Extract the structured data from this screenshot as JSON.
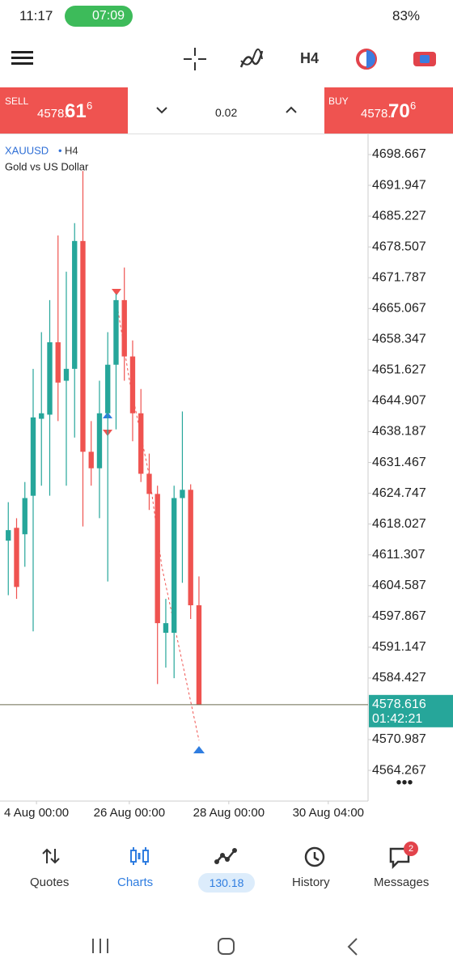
{
  "status_bar": {
    "time": "11:17",
    "call_timer": "07:09",
    "battery": "83%"
  },
  "toolbar": {
    "timeframe": "H4"
  },
  "trade_panel": {
    "sell_label": "SELL",
    "sell_price_main": "4578.",
    "sell_price_big": "61",
    "sell_price_sup": "6",
    "volume": "0.02",
    "buy_label": "BUY",
    "buy_price_main": "4578.",
    "buy_price_big": "70",
    "buy_price_sup": "6"
  },
  "chart_data": {
    "type": "candlestick",
    "symbol": "XAUUSD",
    "timeframe": "H4",
    "description": "Gold vs US Dollar",
    "up_color": "#26a69a",
    "down_color": "#ef5350",
    "open": [
      4614.4,
      4617.2,
      4615.8,
      4624.2,
      4641.0,
      4641.9,
      4657.7,
      4649.3,
      4651.9,
      4679.8,
      4633.8,
      4630.2,
      4642.2,
      4652.8,
      4666.9,
      4654.6,
      4642.2,
      4629.0,
      4624.6,
      4594.3,
      4594.3,
      4623.7,
      4625.5,
      4600.3
    ],
    "high": [
      4622.8,
      4619.3,
      4627.2,
      4651.9,
      4659.9,
      4666.9,
      4681.0,
      4673.1,
      4683.7,
      4695.1,
      4640.5,
      4649.3,
      4659.9,
      4668.3,
      4674.0,
      4658.1,
      4647.5,
      4633.4,
      4626.4,
      4601.7,
      4626.4,
      4642.6,
      4626.7,
      4606.6
    ],
    "low": [
      4602.5,
      4601.7,
      4608.7,
      4594.6,
      4626.4,
      4624.2,
      4640.5,
      4626.4,
      4636.9,
      4617.5,
      4626.4,
      4619.3,
      4605.5,
      4638.7,
      4649.3,
      4636.1,
      4627.2,
      4621.1,
      4583.1,
      4586.7,
      4584.4,
      4605.2,
      4597.3,
      4578.6
    ],
    "close": [
      4616.7,
      4604.3,
      4623.7,
      4641.3,
      4642.2,
      4657.7,
      4648.9,
      4651.9,
      4679.8,
      4633.8,
      4630.2,
      4642.2,
      4652.8,
      4666.9,
      4654.6,
      4642.2,
      4629.0,
      4624.6,
      4596.4,
      4596.4,
      4623.7,
      4625.5,
      4600.3,
      4578.616
    ],
    "xlim": [
      -1,
      43.4
    ],
    "xticks": [
      {
        "value": 3.4,
        "label": "4 Aug 00:00"
      },
      {
        "value": 14.6,
        "label": "26 Aug 00:00"
      },
      {
        "value": 26.6,
        "label": "28 Aug 00:00"
      },
      {
        "value": 38.6,
        "label": "30 Aug 04:00"
      }
    ],
    "ylim": [
      4557.57,
      4703.08
    ],
    "yticks": [
      4698.667,
      4691.947,
      4685.227,
      4678.507,
      4671.787,
      4665.067,
      4658.347,
      4651.627,
      4644.907,
      4638.187,
      4631.467,
      4624.747,
      4618.027,
      4611.307,
      4604.587,
      4597.867,
      4591.147,
      4584.427,
      4570.987,
      4564.267
    ],
    "current_price": 4578.616,
    "countdown": "01:42:21"
  },
  "nav": {
    "quotes": "Quotes",
    "charts": "Charts",
    "trade": "130.18",
    "history": "History",
    "messages": "Messages",
    "messages_badge": "2"
  }
}
